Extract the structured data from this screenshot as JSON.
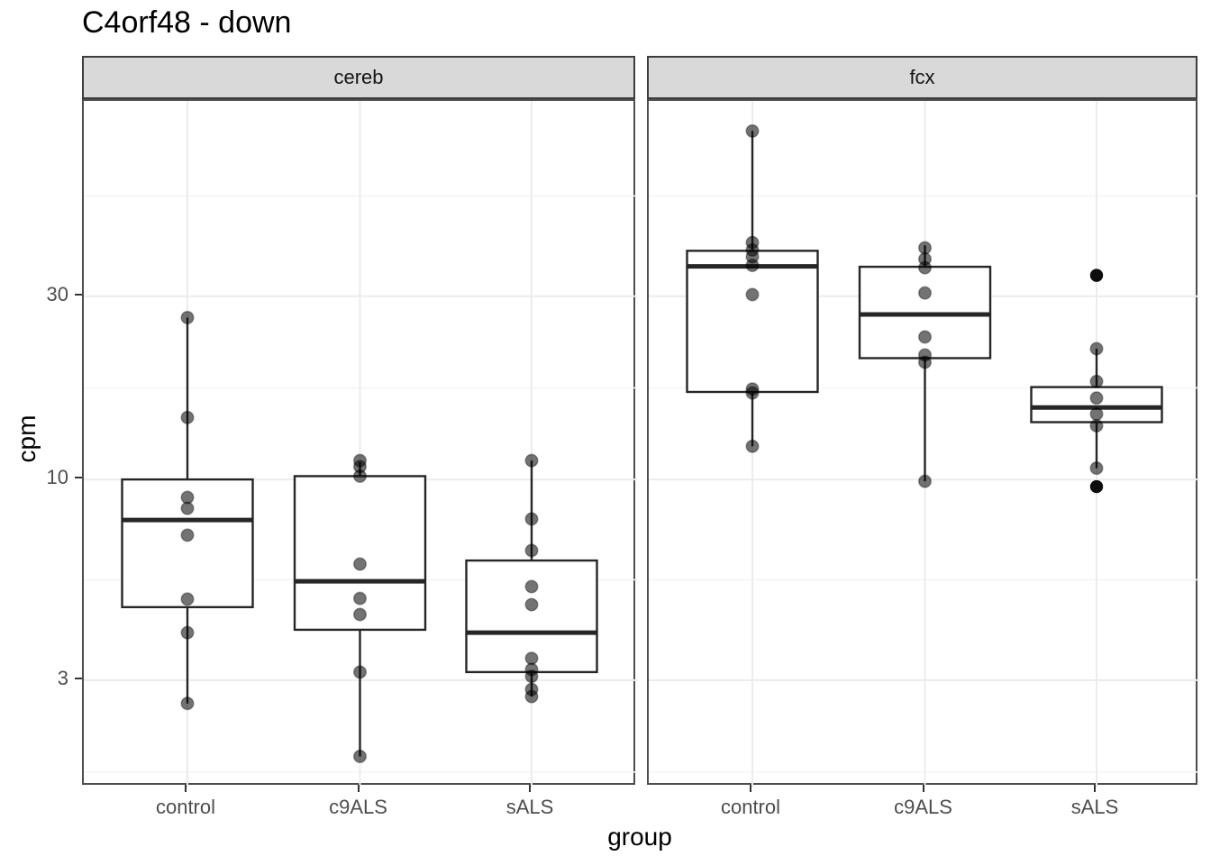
{
  "title": "C4orf48 - down",
  "y_axis": {
    "label": "cpm",
    "ticks": [
      {
        "label": "30",
        "value": 30
      },
      {
        "label": "10",
        "value": 10
      },
      {
        "label": "3",
        "value": 3
      }
    ],
    "minor_values": [
      54.77,
      17.32,
      5.48,
      1.73
    ]
  },
  "x_axis": {
    "label": "group",
    "groups": [
      "control",
      "c9ALS",
      "sALS"
    ]
  },
  "chart_data": {
    "type": "boxplot",
    "y_scale": "log10",
    "y_domain": [
      1.585,
      96.8
    ],
    "grid": true,
    "facets": [
      {
        "label": "cereb",
        "groups": [
          {
            "name": "control",
            "box": {
              "whisker_min": 2.61,
              "q1": 4.65,
              "median": 7.84,
              "q3": 10.0,
              "whisker_max": 26.4
            },
            "points": [
              26.4,
              14.5,
              8.98,
              8.41,
              7.16,
              4.88,
              3.99,
              2.61
            ],
            "outliers": []
          },
          {
            "name": "c9ALS",
            "box": {
              "whisker_min": 1.9,
              "q1": 4.06,
              "median": 5.43,
              "q3": 10.2,
              "whisker_max": 11.1
            },
            "points": [
              11.2,
              10.8,
              10.2,
              6.02,
              4.9,
              4.45,
              3.15,
              1.9
            ],
            "outliers": []
          },
          {
            "name": "sALS",
            "box": {
              "whisker_min": 2.72,
              "q1": 3.15,
              "median": 3.99,
              "q3": 6.15,
              "whisker_max": 11.2
            },
            "points": [
              11.2,
              7.89,
              6.53,
              5.26,
              4.72,
              3.42,
              3.2,
              3.07,
              2.84,
              2.72
            ],
            "outliers": []
          }
        ]
      },
      {
        "label": "fcx",
        "groups": [
          {
            "name": "control",
            "box": {
              "whisker_min": 12.2,
              "q1": 16.9,
              "median": 35.9,
              "q3": 39.4,
              "whisker_max": 80.8
            },
            "points": [
              80.8,
              41.4,
              39.6,
              38.0,
              36.1,
              30.3,
              17.2,
              16.8,
              12.2
            ],
            "outliers": []
          },
          {
            "name": "c9ALS",
            "box": {
              "whisker_min": 9.89,
              "q1": 20.7,
              "median": 26.9,
              "q3": 35.8,
              "whisker_max": 40.7
            },
            "points": [
              40.1,
              37.5,
              35.6,
              30.6,
              23.5,
              21.1,
              20.2,
              9.89
            ],
            "outliers": []
          },
          {
            "name": "sALS",
            "box": {
              "whisker_min": 10.7,
              "q1": 14.1,
              "median": 15.4,
              "q3": 17.4,
              "whisker_max": 21.9
            },
            "points": [
              21.9,
              18.0,
              16.3,
              14.8,
              13.8,
              10.7
            ],
            "outliers": [
              34.0,
              9.58
            ]
          }
        ]
      }
    ]
  },
  "colors": {
    "point": "#000000",
    "point_opacity": 0.55,
    "outlier": "#0d0d0d",
    "box_stroke": "#262626",
    "box_fill": "#ffffff",
    "grid_major": "#ececec",
    "grid_minor": "#f5f5f5",
    "strip_fill": "#d9d9d9",
    "axis_text": "#4d4d4d",
    "tick_mark": "#333333"
  }
}
